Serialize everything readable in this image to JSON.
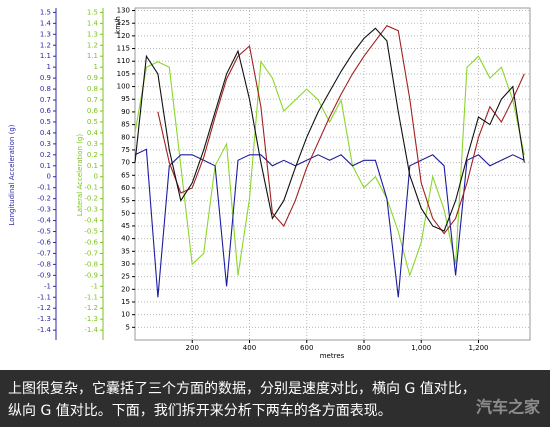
{
  "chart_data": {
    "type": "line",
    "ylabel": "km/h",
    "y2label": "Lateral Acceleration (g)",
    "y3label": "Longitudinal Acceleration (g)",
    "xlabel": "metres",
    "xlim": [
      0,
      1380
    ],
    "xticks": [
      200,
      400,
      600,
      800,
      {
        "value": 1000,
        "label": "1,000"
      },
      {
        "value": 1200,
        "label": "1,200"
      }
    ],
    "ylim": [
      0,
      131
    ],
    "yticks": [
      5,
      10,
      15,
      20,
      25,
      30,
      35,
      40,
      45,
      50,
      55,
      60,
      65,
      70,
      75,
      80,
      85,
      90,
      95,
      100,
      105,
      110,
      115,
      120,
      125,
      130
    ],
    "y2lim": [
      -1.49,
      1.54
    ],
    "y2ticks": [
      1.5,
      1.4,
      1.3,
      1.2,
      1.1,
      1,
      0.9,
      0.8,
      0.7,
      0.6,
      0.5,
      0.4,
      0.3,
      0.2,
      0.1,
      0,
      -0.1,
      -0.2,
      -0.3,
      -0.4,
      -0.5,
      -0.6,
      -0.7,
      -0.8,
      -0.9,
      -1,
      -1.1,
      -1.2,
      -1.3,
      -1.4
    ],
    "y3lim": [
      -1.49,
      1.54
    ],
    "y3ticks": [
      1.5,
      1.4,
      1.3,
      1.2,
      1.1,
      1,
      0.9,
      0.8,
      0.7,
      0.6,
      0.5,
      0.4,
      0.3,
      0.2,
      0.1,
      0,
      -0.1,
      -0.2,
      -0.3,
      -0.4,
      -0.5,
      -0.6,
      -0.7,
      -0.8,
      -0.9,
      -1,
      -1.1,
      -1.2,
      -1.3,
      -1.4
    ],
    "y2_color": "#7cc31c",
    "y3_color": "#2a2aa8",
    "grid": true,
    "x": [
      0,
      40,
      80,
      120,
      160,
      200,
      240,
      280,
      320,
      360,
      400,
      440,
      480,
      520,
      560,
      600,
      640,
      680,
      720,
      760,
      800,
      840,
      880,
      920,
      960,
      1000,
      1040,
      1080,
      1120,
      1160,
      1200,
      1240,
      1280,
      1320,
      1360
    ],
    "series": [
      {
        "color": "#8bd62a",
        "axis": "y2",
        "values": [
          0.4,
          1.0,
          1.05,
          1.0,
          0.1,
          -0.8,
          -0.7,
          0.1,
          0.3,
          -0.9,
          -0.2,
          1.05,
          0.9,
          0.6,
          0.7,
          0.8,
          0.7,
          0.5,
          0.7,
          0.1,
          -0.1,
          0.0,
          -0.2,
          -0.5,
          -0.9,
          -0.6,
          0.0,
          -0.3,
          -0.8,
          1.0,
          1.1,
          0.9,
          1.0,
          0.7,
          0.2
        ]
      },
      {
        "color": "#1c1ca0",
        "axis": "y3",
        "values": [
          0.2,
          0.25,
          -1.1,
          0.1,
          0.2,
          0.2,
          0.15,
          0.1,
          -1.0,
          0.15,
          0.2,
          0.2,
          0.1,
          0.15,
          0.1,
          0.15,
          0.2,
          0.15,
          0.2,
          0.1,
          0.15,
          0.15,
          -0.2,
          -1.1,
          0.1,
          0.15,
          0.2,
          0.1,
          -0.9,
          0.15,
          0.2,
          0.1,
          0.15,
          0.2,
          0.15
        ]
      },
      {
        "color": "#a02020",
        "axis": "y",
        "values": [
          null,
          null,
          90,
          70,
          58,
          60,
          72,
          88,
          103,
          112,
          116,
          92,
          50,
          45,
          55,
          68,
          78,
          88,
          97,
          105,
          112,
          118,
          124,
          122,
          95,
          62,
          48,
          42,
          48,
          62,
          80,
          92,
          86,
          95,
          105
        ]
      },
      {
        "color": "#111111",
        "axis": "y",
        "values": [
          70,
          112,
          105,
          75,
          55,
          62,
          75,
          90,
          105,
          114,
          95,
          70,
          48,
          55,
          68,
          80,
          90,
          98,
          106,
          113,
          119,
          123,
          118,
          90,
          65,
          52,
          45,
          43,
          55,
          72,
          88,
          85,
          95,
          100,
          70
        ]
      }
    ]
  },
  "caption": {
    "lines": [
      "上图很复杂，它囊括了三个方面的数据，分别是速度对比，横向 G 值对比，",
      "纵向 G 值对比。下面，我们拆开来分析下两车的各方面表现。"
    ],
    "watermark": "汽车之家"
  }
}
